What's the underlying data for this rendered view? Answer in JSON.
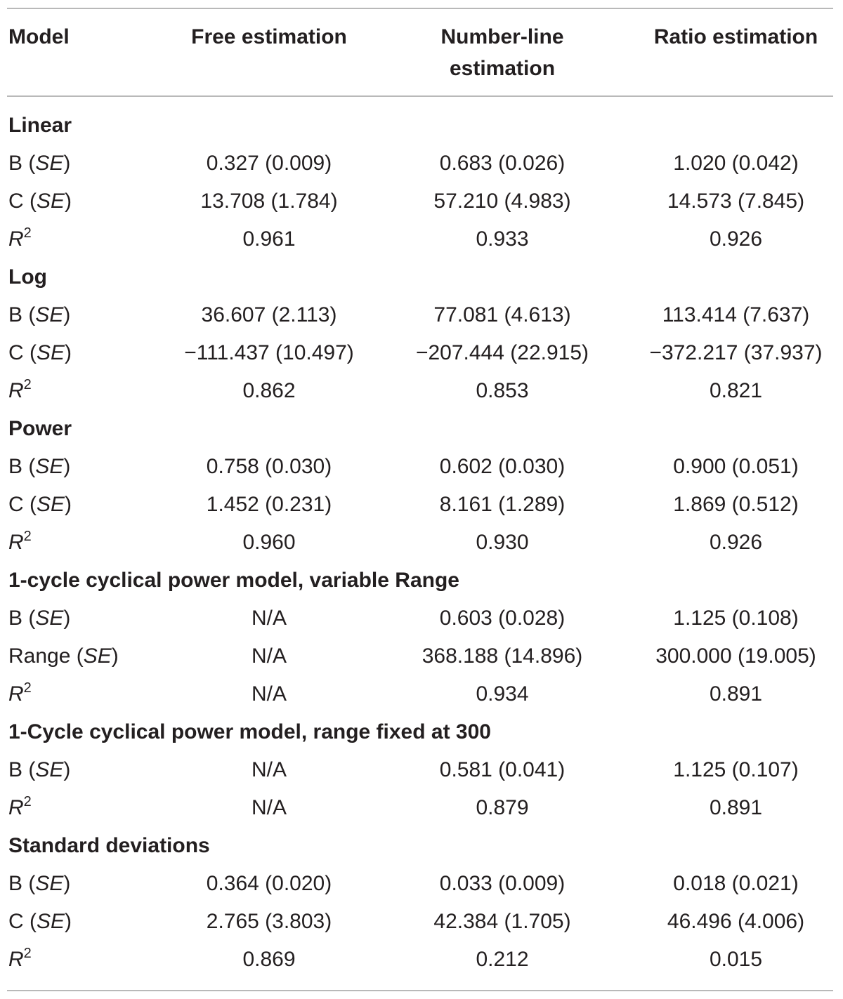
{
  "header": {
    "model": "Model",
    "free": "Free estimation",
    "numberline_line1": "Number-line",
    "numberline_line2": "estimation",
    "ratio": "Ratio estimation"
  },
  "labels": {
    "b": "B",
    "c": "C",
    "range": "Range",
    "r": "R",
    "r_exp": "2",
    "se": "SE",
    "open_paren": "(",
    "close_paren": ")"
  },
  "sections": [
    {
      "title": "Linear",
      "rows": [
        {
          "kind": "b",
          "values": [
            "0.327 (0.009)",
            "0.683 (0.026)",
            "1.020 (0.042)"
          ]
        },
        {
          "kind": "c",
          "values": [
            "13.708 (1.784)",
            "57.210 (4.983)",
            "14.573 (7.845)"
          ]
        },
        {
          "kind": "r2",
          "values": [
            "0.961",
            "0.933",
            "0.926"
          ]
        }
      ]
    },
    {
      "title": "Log",
      "rows": [
        {
          "kind": "b",
          "values": [
            "36.607 (2.113)",
            "77.081 (4.613)",
            "113.414 (7.637)"
          ]
        },
        {
          "kind": "c",
          "values": [
            "−111.437 (10.497)",
            "−207.444 (22.915)",
            "−372.217 (37.937)"
          ]
        },
        {
          "kind": "r2",
          "values": [
            "0.862",
            "0.853",
            "0.821"
          ]
        }
      ]
    },
    {
      "title": "Power",
      "rows": [
        {
          "kind": "b",
          "values": [
            "0.758 (0.030)",
            "0.602 (0.030)",
            "0.900 (0.051)"
          ]
        },
        {
          "kind": "c",
          "values": [
            "1.452 (0.231)",
            "8.161 (1.289)",
            "1.869 (0.512)"
          ]
        },
        {
          "kind": "r2",
          "values": [
            "0.960",
            "0.930",
            "0.926"
          ]
        }
      ]
    },
    {
      "title": "1-cycle cyclical power model, variable Range",
      "rows": [
        {
          "kind": "b",
          "values": [
            "N/A",
            "0.603 (0.028)",
            "1.125 (0.108)"
          ]
        },
        {
          "kind": "range",
          "values": [
            "N/A",
            "368.188 (14.896)",
            "300.000 (19.005)"
          ]
        },
        {
          "kind": "r2",
          "values": [
            "N/A",
            "0.934",
            "0.891"
          ]
        }
      ]
    },
    {
      "title": "1-Cycle cyclical power model, range fixed at 300",
      "rows": [
        {
          "kind": "b",
          "values": [
            "N/A",
            "0.581 (0.041)",
            "1.125 (0.107)"
          ]
        },
        {
          "kind": "r2",
          "values": [
            "N/A",
            "0.879",
            "0.891"
          ]
        }
      ]
    },
    {
      "title": "Standard deviations",
      "rows": [
        {
          "kind": "b",
          "values": [
            "0.364 (0.020)",
            "0.033 (0.009)",
            "0.018 (0.021)"
          ]
        },
        {
          "kind": "c",
          "values": [
            "2.765 (3.803)",
            "42.384 (1.705)",
            "46.496 (4.006)"
          ]
        },
        {
          "kind": "r2",
          "values": [
            "0.869",
            "0.212",
            "0.015"
          ]
        }
      ]
    }
  ]
}
